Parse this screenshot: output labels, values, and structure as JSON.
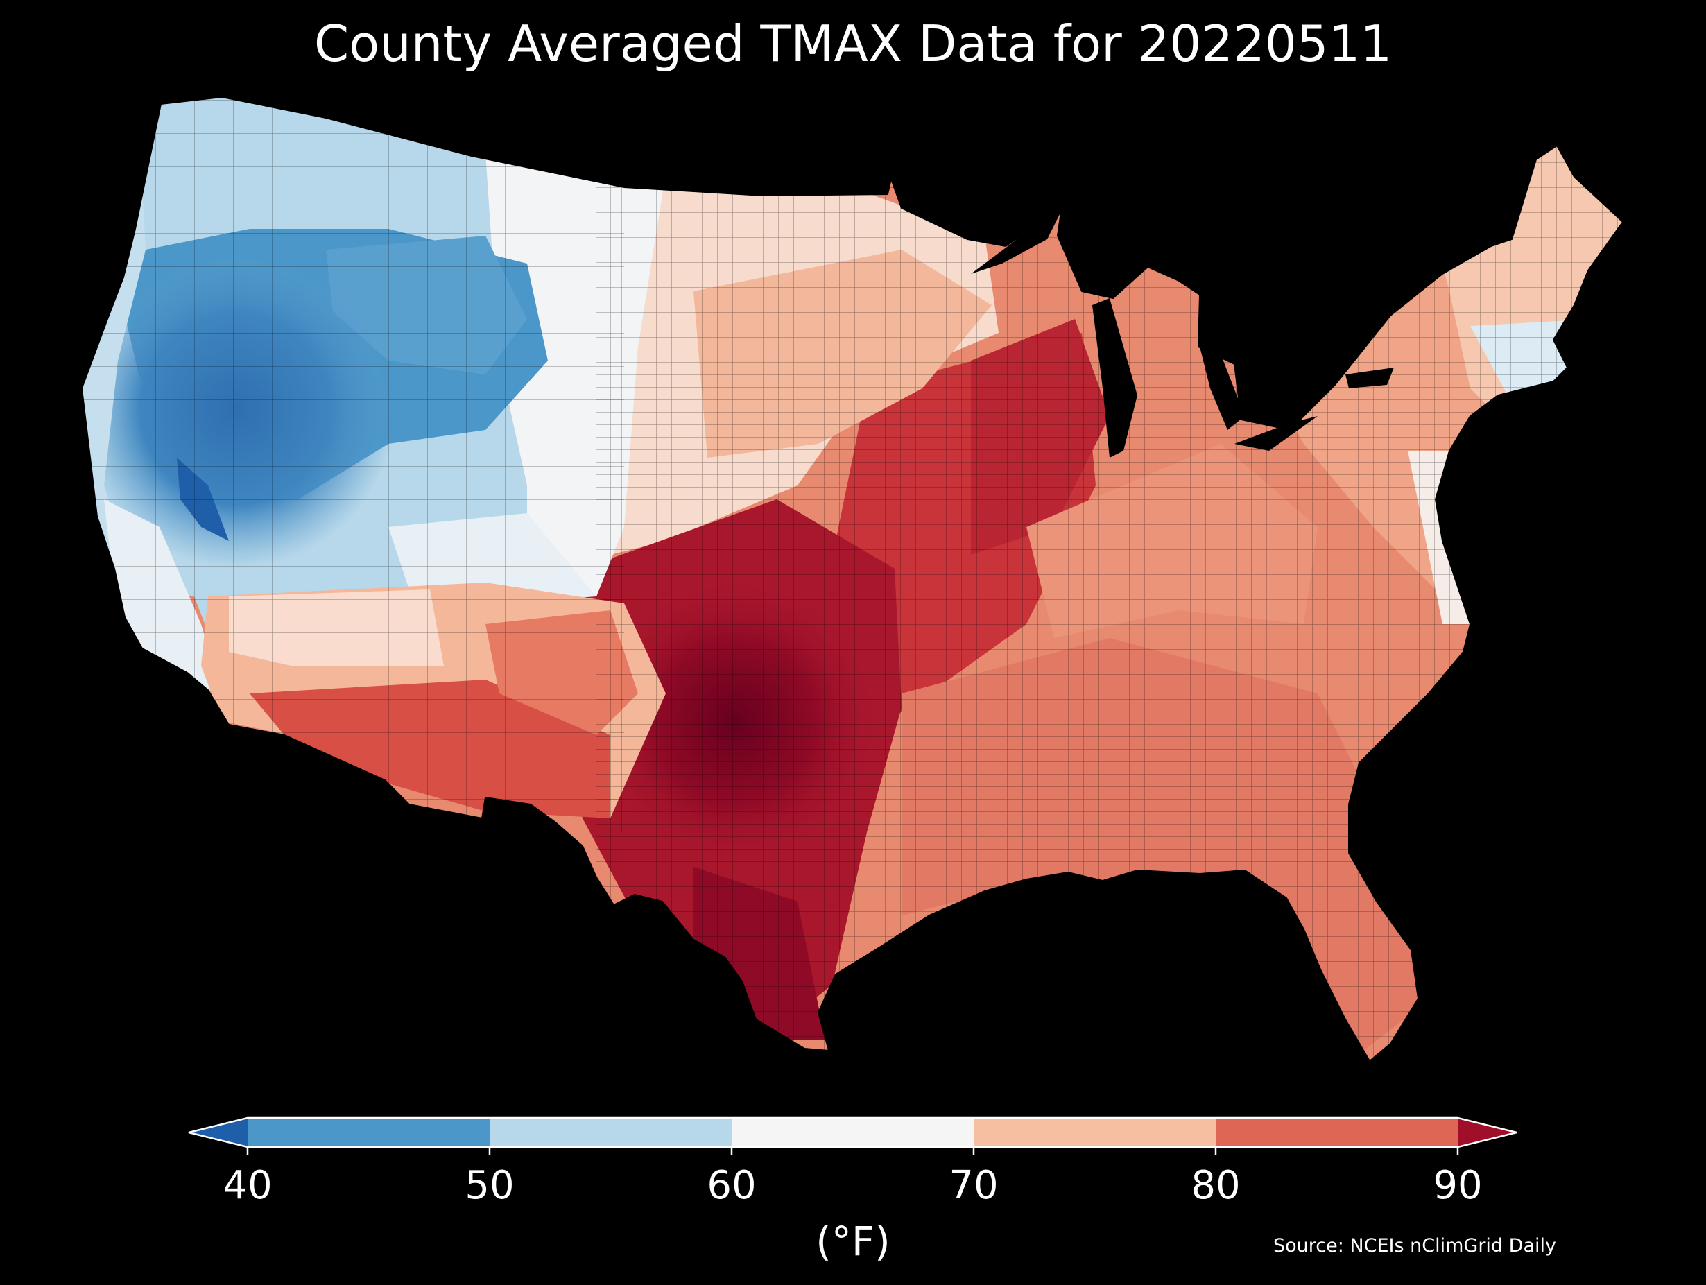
{
  "title": "County Averaged TMAX Data for 20220511",
  "colorbar": {
    "label": "(°F)",
    "ticks": [
      "40",
      "50",
      "60",
      "70",
      "80",
      "90"
    ],
    "bins": [
      {
        "range": "<40",
        "color": "#1f5ea8"
      },
      {
        "range": "40-50",
        "color": "#4b97c9"
      },
      {
        "range": "50-60",
        "color": "#b7d8ea"
      },
      {
        "range": "60-70",
        "color": "#f5f5f5"
      },
      {
        "range": "70-80",
        "color": "#f7bfa2"
      },
      {
        "range": "80-90",
        "color": "#dd6654"
      },
      {
        "range": ">90",
        "color": "#a00f29"
      }
    ],
    "extend": "both"
  },
  "source": "Source: NCEIs nClimGrid Daily",
  "map": {
    "region": "Contiguous United States",
    "units": "°F",
    "regions": [
      {
        "name": "pacific-northwest-coast",
        "value_range": "50-60"
      },
      {
        "name": "great-basin-mountains",
        "value_range": "40-50"
      },
      {
        "name": "sierra-nevada",
        "value_range": "<40"
      },
      {
        "name": "california-coast",
        "value_range": "60-70"
      },
      {
        "name": "northern-plains",
        "value_range": "60-70"
      },
      {
        "name": "desert-southwest",
        "value_range": "80-90"
      },
      {
        "name": "southern-plains-texas",
        "value_range": ">90"
      },
      {
        "name": "midwest-corridor",
        "value_range": "80-90"
      },
      {
        "name": "southeast",
        "value_range": "80-90"
      },
      {
        "name": "northeast",
        "value_range": "70-80"
      },
      {
        "name": "new-england-coast",
        "value_range": "60-70"
      }
    ]
  }
}
